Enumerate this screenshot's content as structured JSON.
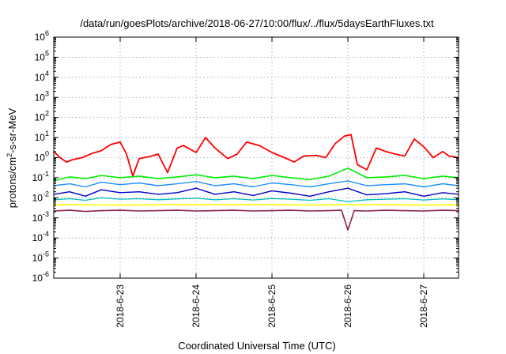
{
  "chart_data": {
    "type": "line",
    "title": "/data/run/goesPlots/archive/2018-06-27/10:00/flux/../flux/5daysEarthFluxes.txt",
    "xlabel": "Coordinated Universal Time (UTC)",
    "ylabel_parts": [
      "protons/cm",
      "2",
      "-s-sr-MeV"
    ],
    "yscale": "log",
    "grid": true,
    "ylim_exp": [
      -6,
      6
    ],
    "ytick_exps": [
      "-6",
      "-5",
      "-4",
      "-3",
      "-2",
      "-1",
      "0",
      "1",
      "2",
      "3",
      "4",
      "5",
      "6"
    ],
    "ytick_base": "10",
    "xlim": [
      "2018-06-22 03:00",
      "2018-06-27 11:00"
    ],
    "xticks": [
      "2018-6-23",
      "2018-6-24",
      "2018-6-25",
      "2018-6-26",
      "2018-6-27"
    ],
    "series": [
      {
        "color": "#ff0000",
        "width": 1.8,
        "x": [
          "2018-06-22 03:00",
          "2018-06-22 05:00",
          "2018-06-22 07:00",
          "2018-06-22 09:00",
          "2018-06-22 12:00",
          "2018-06-22 15:00",
          "2018-06-22 18:00",
          "2018-06-22 21:00",
          "2018-06-23 00:00",
          "2018-06-23 02:00",
          "2018-06-23 04:00",
          "2018-06-23 06:00",
          "2018-06-23 09:00",
          "2018-06-23 12:00",
          "2018-06-23 15:00",
          "2018-06-23 18:00",
          "2018-06-23 20:00",
          "2018-06-24 00:00",
          "2018-06-24 03:00",
          "2018-06-24 06:00",
          "2018-06-24 10:00",
          "2018-06-24 13:00",
          "2018-06-24 16:00",
          "2018-06-24 20:00",
          "2018-06-25 00:00",
          "2018-06-25 04:00",
          "2018-06-25 07:00",
          "2018-06-25 10:00",
          "2018-06-25 14:00",
          "2018-06-25 17:00",
          "2018-06-25 20:00",
          "2018-06-25 23:00",
          "2018-06-26 01:00",
          "2018-06-26 03:00",
          "2018-06-26 06:00",
          "2018-06-26 09:00",
          "2018-06-26 12:00",
          "2018-06-26 15:00",
          "2018-06-26 18:00",
          "2018-06-26 21:00",
          "2018-06-27 00:00",
          "2018-06-27 03:00",
          "2018-06-27 06:00",
          "2018-06-27 08:00",
          "2018-06-27 11:00"
        ],
        "y": [
          2.0,
          1.0,
          0.6,
          0.8,
          1.0,
          1.6,
          2.2,
          4.5,
          6.0,
          1.5,
          0.12,
          0.9,
          1.1,
          1.5,
          0.18,
          3.0,
          4.0,
          1.8,
          10.0,
          3.0,
          0.9,
          1.5,
          6.0,
          4.0,
          1.8,
          1.0,
          0.6,
          1.2,
          1.3,
          1.0,
          5.0,
          12.0,
          14.0,
          0.45,
          0.25,
          3.0,
          2.0,
          1.5,
          1.2,
          8.5,
          3.5,
          1.0,
          2.0,
          1.2,
          1.0
        ]
      },
      {
        "color": "#00ee00",
        "width": 1.6,
        "x": [
          "2018-06-22 03:00",
          "2018-06-22 08:00",
          "2018-06-22 13:00",
          "2018-06-22 18:00",
          "2018-06-23 00:00",
          "2018-06-23 06:00",
          "2018-06-23 12:00",
          "2018-06-23 18:00",
          "2018-06-24 00:00",
          "2018-06-24 06:00",
          "2018-06-24 12:00",
          "2018-06-24 18:00",
          "2018-06-25 00:00",
          "2018-06-25 06:00",
          "2018-06-25 12:00",
          "2018-06-25 18:00",
          "2018-06-26 00:00",
          "2018-06-26 06:00",
          "2018-06-26 12:00",
          "2018-06-26 18:00",
          "2018-06-27 00:00",
          "2018-06-27 06:00",
          "2018-06-27 11:00"
        ],
        "y": [
          0.07,
          0.11,
          0.09,
          0.13,
          0.1,
          0.12,
          0.09,
          0.11,
          0.14,
          0.1,
          0.12,
          0.09,
          0.13,
          0.1,
          0.08,
          0.12,
          0.3,
          0.1,
          0.11,
          0.13,
          0.09,
          0.12,
          0.1
        ]
      },
      {
        "color": "#1e90ff",
        "width": 1.4,
        "x": [
          "2018-06-22 03:00",
          "2018-06-22 08:00",
          "2018-06-22 13:00",
          "2018-06-22 18:00",
          "2018-06-23 00:00",
          "2018-06-23 06:00",
          "2018-06-23 12:00",
          "2018-06-23 18:00",
          "2018-06-24 00:00",
          "2018-06-24 06:00",
          "2018-06-24 12:00",
          "2018-06-24 18:00",
          "2018-06-25 00:00",
          "2018-06-25 06:00",
          "2018-06-25 12:00",
          "2018-06-25 18:00",
          "2018-06-26 00:00",
          "2018-06-26 06:00",
          "2018-06-26 12:00",
          "2018-06-26 18:00",
          "2018-06-27 00:00",
          "2018-06-27 06:00",
          "2018-06-27 11:00"
        ],
        "y": [
          0.04,
          0.05,
          0.035,
          0.06,
          0.045,
          0.055,
          0.04,
          0.05,
          0.065,
          0.04,
          0.05,
          0.035,
          0.055,
          0.045,
          0.035,
          0.05,
          0.07,
          0.04,
          0.045,
          0.05,
          0.035,
          0.05,
          0.04
        ]
      },
      {
        "color": "#0000cd",
        "width": 1.4,
        "x": [
          "2018-06-22 03:00",
          "2018-06-22 08:00",
          "2018-06-22 13:00",
          "2018-06-22 18:00",
          "2018-06-23 00:00",
          "2018-06-23 06:00",
          "2018-06-23 12:00",
          "2018-06-23 18:00",
          "2018-06-24 00:00",
          "2018-06-24 06:00",
          "2018-06-24 12:00",
          "2018-06-24 18:00",
          "2018-06-25 00:00",
          "2018-06-25 06:00",
          "2018-06-25 12:00",
          "2018-06-25 18:00",
          "2018-06-26 00:00",
          "2018-06-26 06:00",
          "2018-06-26 12:00",
          "2018-06-26 18:00",
          "2018-06-27 00:00",
          "2018-06-27 06:00",
          "2018-06-27 11:00"
        ],
        "y": [
          0.015,
          0.02,
          0.012,
          0.025,
          0.018,
          0.02,
          0.015,
          0.018,
          0.03,
          0.015,
          0.02,
          0.013,
          0.022,
          0.017,
          0.012,
          0.02,
          0.03,
          0.014,
          0.016,
          0.02,
          0.012,
          0.018,
          0.015
        ]
      },
      {
        "color": "#00bfbf",
        "width": 1.3,
        "x": [
          "2018-06-22 03:00",
          "2018-06-22 08:00",
          "2018-06-22 13:00",
          "2018-06-22 18:00",
          "2018-06-23 00:00",
          "2018-06-23 06:00",
          "2018-06-23 12:00",
          "2018-06-23 18:00",
          "2018-06-24 00:00",
          "2018-06-24 06:00",
          "2018-06-24 12:00",
          "2018-06-24 18:00",
          "2018-06-25 00:00",
          "2018-06-25 06:00",
          "2018-06-25 12:00",
          "2018-06-25 18:00",
          "2018-06-26 00:00",
          "2018-06-26 06:00",
          "2018-06-26 12:00",
          "2018-06-26 18:00",
          "2018-06-27 00:00",
          "2018-06-27 06:00",
          "2018-06-27 11:00"
        ],
        "y": [
          0.008,
          0.009,
          0.0075,
          0.01,
          0.0085,
          0.009,
          0.008,
          0.0088,
          0.0095,
          0.008,
          0.009,
          0.0078,
          0.0092,
          0.0085,
          0.0075,
          0.009,
          0.0065,
          0.008,
          0.0085,
          0.009,
          0.0078,
          0.0088,
          0.008
        ]
      },
      {
        "color": "#ffff00",
        "width": 1.6,
        "x": [
          "2018-06-22 03:00",
          "2018-06-22 12:00",
          "2018-06-23 00:00",
          "2018-06-23 12:00",
          "2018-06-24 00:00",
          "2018-06-24 12:00",
          "2018-06-25 00:00",
          "2018-06-25 12:00",
          "2018-06-26 00:00",
          "2018-06-26 12:00",
          "2018-06-27 00:00",
          "2018-06-27 11:00"
        ],
        "y": [
          0.0045,
          0.0045,
          0.0044,
          0.0045,
          0.0046,
          0.0045,
          0.0045,
          0.0044,
          0.0045,
          0.0045,
          0.0044,
          0.0045
        ]
      },
      {
        "color": "#8b2252",
        "width": 1.6,
        "x": [
          "2018-06-22 03:00",
          "2018-06-22 08:00",
          "2018-06-22 13:00",
          "2018-06-22 18:00",
          "2018-06-23 00:00",
          "2018-06-23 06:00",
          "2018-06-23 12:00",
          "2018-06-23 18:00",
          "2018-06-24 00:00",
          "2018-06-24 06:00",
          "2018-06-24 12:00",
          "2018-06-24 18:00",
          "2018-06-25 00:00",
          "2018-06-25 06:00",
          "2018-06-25 12:00",
          "2018-06-25 18:00",
          "2018-06-25 22:00",
          "2018-06-26 00:00",
          "2018-06-26 02:00",
          "2018-06-26 06:00",
          "2018-06-26 12:00",
          "2018-06-26 18:00",
          "2018-06-27 00:00",
          "2018-06-27 06:00",
          "2018-06-27 11:00"
        ],
        "y": [
          0.0022,
          0.0024,
          0.0021,
          0.0023,
          0.0024,
          0.0022,
          0.0023,
          0.0024,
          0.0022,
          0.0023,
          0.0024,
          0.0022,
          0.0023,
          0.0024,
          0.0022,
          0.0023,
          0.0024,
          0.00025,
          0.0023,
          0.0022,
          0.0024,
          0.0023,
          0.0022,
          0.0024,
          0.0023
        ]
      }
    ]
  }
}
